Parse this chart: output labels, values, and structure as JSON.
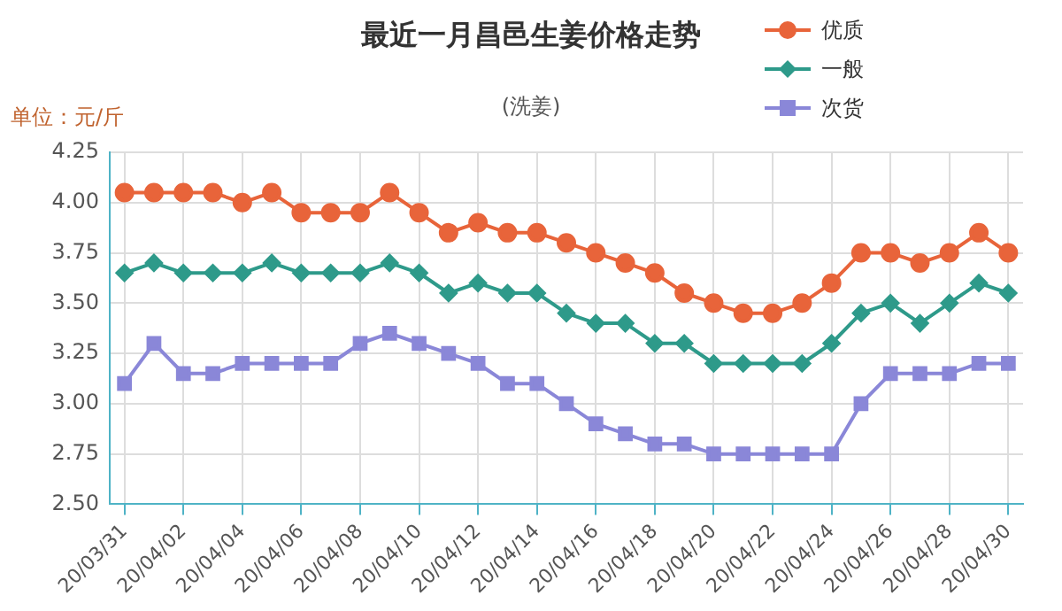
{
  "chart_data": {
    "type": "line",
    "title": "最近一月昌邑生姜价格走势",
    "subtitle": "(洗姜)",
    "ylabel": "单位：元/斤",
    "categories": [
      "20/03/31",
      null,
      "20/04/02",
      null,
      "20/04/04",
      null,
      "20/04/06",
      null,
      "20/04/08",
      null,
      "20/04/10",
      null,
      "20/04/12",
      null,
      "20/04/14",
      null,
      "20/04/16",
      null,
      "20/04/18",
      null,
      "20/04/20",
      null,
      "20/04/22",
      null,
      "20/04/24",
      null,
      "20/04/26",
      null,
      "20/04/28",
      null,
      "20/04/30"
    ],
    "series": [
      {
        "name": "优质",
        "color": "#e8643a",
        "marker": "circle",
        "values": [
          4.05,
          4.05,
          4.05,
          4.05,
          4.0,
          4.05,
          3.95,
          3.95,
          3.95,
          4.05,
          3.95,
          3.85,
          3.9,
          3.85,
          3.85,
          3.8,
          3.75,
          3.7,
          3.65,
          3.55,
          3.5,
          3.45,
          3.45,
          3.5,
          3.6,
          3.75,
          3.75,
          3.7,
          3.75,
          3.85,
          3.75
        ]
      },
      {
        "name": "一般",
        "color": "#2e9a8a",
        "marker": "diamond",
        "values": [
          3.65,
          3.7,
          3.65,
          3.65,
          3.65,
          3.7,
          3.65,
          3.65,
          3.65,
          3.7,
          3.65,
          3.55,
          3.6,
          3.55,
          3.55,
          3.45,
          3.4,
          3.4,
          3.3,
          3.3,
          3.2,
          3.2,
          3.2,
          3.2,
          3.3,
          3.45,
          3.5,
          3.4,
          3.5,
          3.6,
          3.55
        ]
      },
      {
        "name": "次货",
        "color": "#8a87d8",
        "marker": "square",
        "values": [
          3.1,
          3.3,
          3.15,
          3.15,
          3.2,
          3.2,
          3.2,
          3.2,
          3.3,
          3.35,
          3.3,
          3.25,
          3.2,
          3.1,
          3.1,
          3.0,
          2.9,
          2.85,
          2.8,
          2.8,
          2.75,
          2.75,
          2.75,
          2.75,
          2.75,
          3.0,
          3.15,
          3.15,
          3.15,
          3.2,
          3.2
        ]
      }
    ],
    "ylim": [
      2.5,
      4.25
    ],
    "yticks": [
      {
        "value": 2.5,
        "label": "2.50"
      },
      {
        "value": 2.75,
        "label": "2.75"
      },
      {
        "value": 3,
        "label": "3.00"
      },
      {
        "value": 3.25,
        "label": "3.25"
      },
      {
        "value": 3.5,
        "label": "3.50"
      },
      {
        "value": 3.75,
        "label": "3.75"
      },
      {
        "value": 4,
        "label": "4.00"
      },
      {
        "value": 4.25,
        "label": "4.25"
      }
    ],
    "grid": true,
    "legend": "top right",
    "line_style": "solid"
  }
}
